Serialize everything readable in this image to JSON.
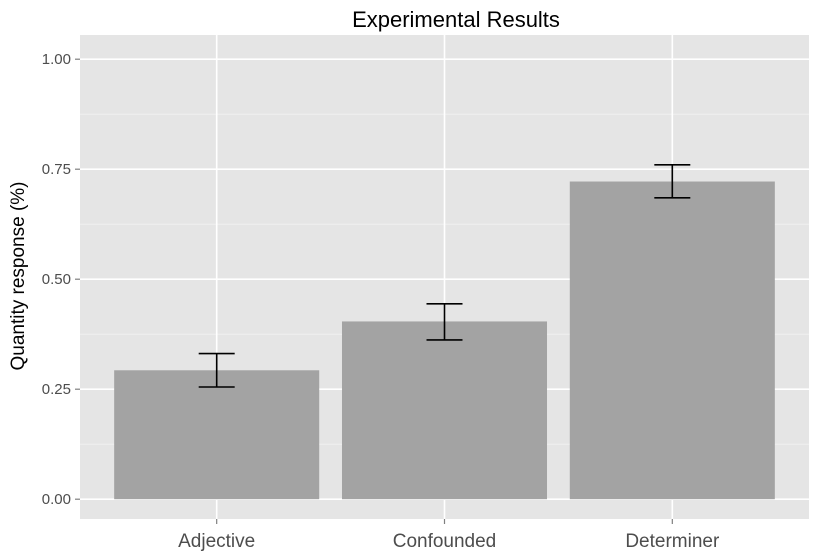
{
  "chart_data": {
    "type": "bar",
    "title": "Experimental Results",
    "xlabel": "",
    "ylabel": "Quantity response (%)",
    "categories": [
      "Adjective",
      "Confounded",
      "Determiner"
    ],
    "values": [
      0.293,
      0.404,
      0.722
    ],
    "error_low": [
      0.255,
      0.362,
      0.685
    ],
    "error_high": [
      0.331,
      0.444,
      0.76
    ],
    "ylim": [
      -0.045,
      1.055
    ],
    "yticks": [
      0.0,
      0.25,
      0.5,
      0.75,
      1.0
    ],
    "ytick_labels": [
      "0.00",
      "0.25",
      "0.50",
      "0.75",
      "1.00"
    ],
    "grid": true,
    "colors": {
      "panel": "#e5e5e5",
      "grid": "#ffffff",
      "bar": "#a3a3a3",
      "errorbar": "#000000",
      "tick_text": "#4d4d4d"
    }
  }
}
